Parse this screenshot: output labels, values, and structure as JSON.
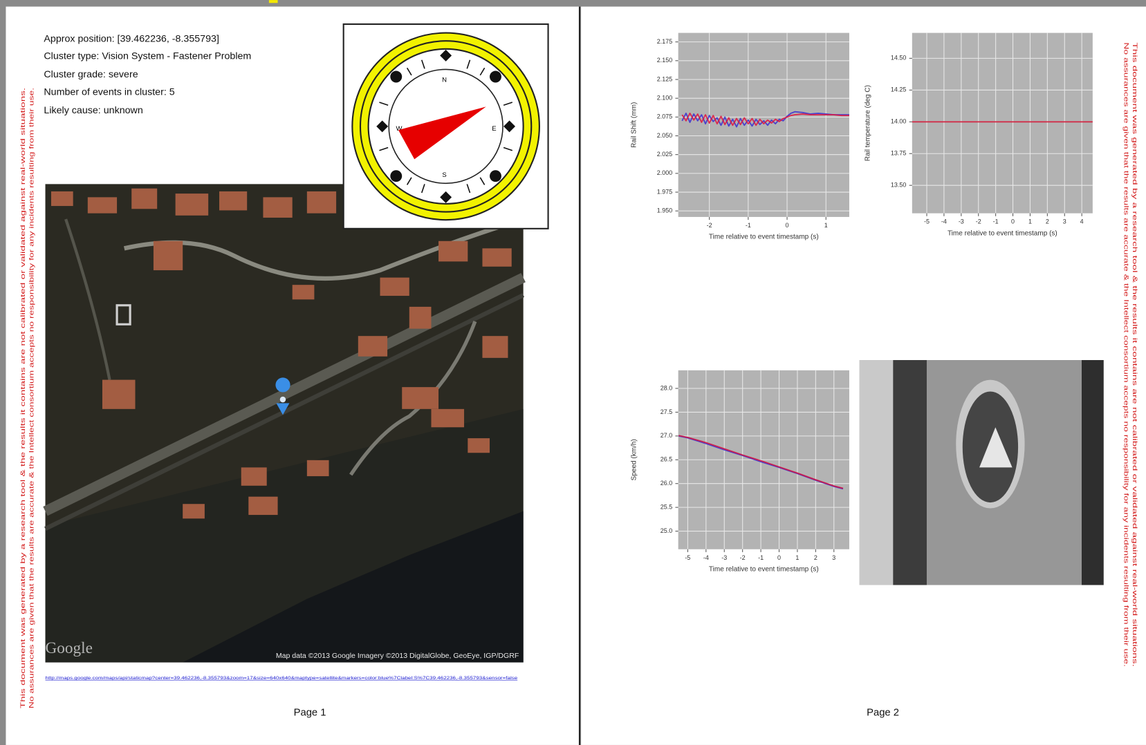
{
  "page1": {
    "info": [
      "Approx position: [39.462236, -8.355793]",
      "Cluster type: Vision System - Fastener Problem",
      "Cluster grade: severe",
      "Number of events in cluster: 5",
      "Likely cause: unknown"
    ],
    "compass": {
      "labels": [
        "N",
        "E",
        "S",
        "W"
      ]
    },
    "map": {
      "logo": "Google",
      "attribution": "Map data ©2013 Google  Imagery ©2013 DigitalGlobe, GeoEye, IGP/DGRF"
    },
    "link": "http://maps.google.com/maps/api/staticmap?center=39.462236,-8.355793&zoom=17&size=640x640&maptype=satellite&markers=color:blue%7Clabel:S%7C39.462236,-8.355793&sensor=false",
    "disclaimer": [
      "This document was generated by a research tool & the results it contains are not calibrated or validated against real-world situations.",
      "No assurances are given that the results are accurate & the Intellect consortium accepts no responsibility for any incidents resulting from their use."
    ],
    "footer": "Page 1"
  },
  "page2": {
    "charts": [
      {
        "type": "line",
        "ylabel": "Rail Shift (mm)",
        "xlabel": "Time relative to event timestamp (s)",
        "xlim": [
          -2.8,
          1.6
        ],
        "ylim": [
          1.942,
          2.187
        ],
        "xticks": [
          -2,
          -1,
          0,
          1
        ],
        "yticks": [
          2.175,
          {
            "value": 2.15,
            "label": "2.150"
          },
          2.125,
          {
            "value": 2.1,
            "label": "2.100"
          },
          2.075,
          {
            "value": 2.05,
            "label": "2.050"
          },
          2.025,
          {
            "value": 2,
            "label": "2.000"
          },
          1.975,
          {
            "value": 1.95,
            "label": "1.950"
          }
        ],
        "grid": true,
        "x": [
          -2.7,
          -2.6,
          -2.5,
          -2.4,
          -2.3,
          -2.2,
          -2.1,
          -2.0,
          -1.9,
          -1.8,
          -1.7,
          -1.6,
          -1.5,
          -1.4,
          -1.3,
          -1.2,
          -1.1,
          -1.0,
          -0.9,
          -0.8,
          -0.7,
          -0.6,
          -0.5,
          -0.4,
          -0.3,
          -0.2,
          -0.1,
          0.0,
          0.1,
          0.2,
          0.4,
          0.6,
          0.8,
          1.0,
          1.2,
          1.4,
          1.6
        ],
        "series": [
          {
            "color": "#3a2fd0",
            "values": [
              2.07,
              2.08,
              2.068,
              2.079,
              2.07,
              2.078,
              2.066,
              2.077,
              2.069,
              2.074,
              2.064,
              2.075,
              2.063,
              2.072,
              2.062,
              2.073,
              2.064,
              2.071,
              2.063,
              2.072,
              2.065,
              2.07,
              2.064,
              2.071,
              2.066,
              2.072,
              2.07,
              2.076,
              2.08,
              2.082,
              2.081,
              2.079,
              2.08,
              2.079,
              2.078,
              2.078,
              2.078
            ]
          },
          {
            "color": "#e0143c",
            "values": [
              2.078,
              2.07,
              2.08,
              2.071,
              2.079,
              2.068,
              2.078,
              2.067,
              2.077,
              2.066,
              2.076,
              2.065,
              2.074,
              2.064,
              2.073,
              2.065,
              2.074,
              2.066,
              2.073,
              2.064,
              2.072,
              2.066,
              2.071,
              2.067,
              2.072,
              2.069,
              2.073,
              2.075,
              2.077,
              2.078,
              2.079,
              2.078,
              2.078,
              2.078,
              2.078,
              2.077,
              2.077
            ]
          }
        ]
      },
      {
        "type": "line",
        "ylabel": "Rail temperature (deg C)",
        "xlabel": "Time relative to event timestamp (s)",
        "xlim": [
          -5.85,
          4.63
        ],
        "ylim": [
          13.28,
          14.7
        ],
        "xticks": [
          -5,
          -4,
          -3,
          -2,
          -1,
          0,
          1,
          2,
          3,
          4
        ],
        "yticks": [
          {
            "value": 14.5,
            "label": "14.50"
          },
          14.25,
          {
            "value": 14,
            "label": "14.00"
          },
          13.75,
          {
            "value": 13.5,
            "label": "13.50"
          }
        ],
        "grid": true,
        "x": [
          -5.85,
          4.63
        ],
        "series": [
          {
            "color": "#d01030",
            "values": [
              14,
              14
            ]
          }
        ]
      },
      {
        "type": "line",
        "ylabel": "Speed (km/h)",
        "xlabel": "Time relative to event timestamp (s)",
        "xlim": [
          -5.52,
          3.84
        ],
        "ylim": [
          24.62,
          28.38
        ],
        "xticks": [
          -5,
          -4,
          -3,
          -2,
          -1,
          0,
          1,
          2,
          3
        ],
        "yticks": [
          {
            "value": 28,
            "label": "28.0"
          },
          27.5,
          {
            "value": 27,
            "label": "27.0"
          },
          26.5,
          {
            "value": 26,
            "label": "26.0"
          },
          25.5,
          {
            "value": 25,
            "label": "25.0"
          }
        ],
        "grid": true,
        "x": [
          -5.5,
          -5,
          -4,
          -3,
          -2,
          -1,
          0,
          1,
          2,
          3,
          3.5
        ],
        "series": [
          {
            "color": "#3a2fd0",
            "values": [
              27.0,
              26.96,
              26.84,
              26.71,
              26.59,
              26.46,
              26.34,
              26.21,
              26.07,
              25.94,
              25.89
            ]
          },
          {
            "color": "#d01040",
            "values": [
              27.01,
              26.97,
              26.86,
              26.73,
              26.6,
              26.48,
              26.35,
              26.22,
              26.08,
              25.95,
              25.9
            ]
          }
        ]
      }
    ],
    "disclaimer": [
      "This document was generated by a research tool & the results it contains are not calibrated or validated against real-world situations.",
      "No assurances are given that the results are accurate & the Intellect consortium accepts no responsibility for any incidents resulting from their use."
    ],
    "footer": "Page 2"
  }
}
